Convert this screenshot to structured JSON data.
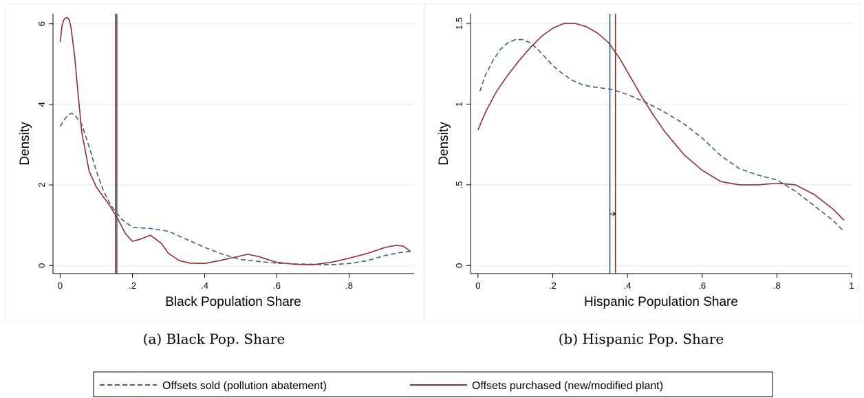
{
  "chart_data": [
    {
      "type": "line",
      "caption": "(a) Black Pop. Share",
      "xlabel": "Black Population Share",
      "ylabel": "Density",
      "xlim": [
        -0.02,
        0.98
      ],
      "ylim": [
        -0.2,
        6.25
      ],
      "xticks": [
        0,
        0.2,
        0.4,
        0.6,
        0.8
      ],
      "xtick_labels": [
        "0",
        ".2",
        ".4",
        ".6",
        ".8"
      ],
      "yticks": [
        0,
        2,
        4,
        6
      ],
      "ytick_labels": [
        "0",
        "2",
        "4",
        "6"
      ],
      "grid": true,
      "series": [
        {
          "name": "Offsets sold (pollution abatement)",
          "color": "#3a5f82",
          "dash": "dashed",
          "x": [
            0,
            0.01,
            0.02,
            0.03,
            0.04,
            0.06,
            0.08,
            0.1,
            0.12,
            0.14,
            0.155,
            0.17,
            0.2,
            0.25,
            0.3,
            0.35,
            0.4,
            0.45,
            0.5,
            0.55,
            0.6,
            0.65,
            0.7,
            0.75,
            0.8,
            0.85,
            0.9,
            0.94,
            0.97
          ],
          "y": [
            3.45,
            3.6,
            3.72,
            3.78,
            3.75,
            3.5,
            2.95,
            2.35,
            1.85,
            1.5,
            1.32,
            1.15,
            0.95,
            0.92,
            0.85,
            0.65,
            0.45,
            0.28,
            0.15,
            0.1,
            0.06,
            0.04,
            0.03,
            0.02,
            0.05,
            0.12,
            0.25,
            0.32,
            0.35
          ]
        },
        {
          "name": "Offsets purchased (new/modified plant)",
          "color": "#8c2d32",
          "dash": "solid",
          "x": [
            0,
            0.005,
            0.01,
            0.015,
            0.02,
            0.025,
            0.03,
            0.04,
            0.05,
            0.06,
            0.08,
            0.1,
            0.12,
            0.14,
            0.16,
            0.18,
            0.2,
            0.22,
            0.25,
            0.28,
            0.3,
            0.33,
            0.36,
            0.4,
            0.44,
            0.48,
            0.52,
            0.55,
            0.6,
            0.65,
            0.7,
            0.75,
            0.8,
            0.85,
            0.9,
            0.93,
            0.95,
            0.97
          ],
          "y": [
            5.55,
            5.95,
            6.1,
            6.15,
            6.15,
            6.1,
            5.9,
            5.2,
            4.2,
            3.3,
            2.35,
            1.95,
            1.7,
            1.45,
            1.15,
            0.8,
            0.6,
            0.65,
            0.75,
            0.55,
            0.3,
            0.12,
            0.06,
            0.05,
            0.12,
            0.2,
            0.28,
            0.22,
            0.08,
            0.03,
            0.02,
            0.08,
            0.18,
            0.3,
            0.45,
            0.5,
            0.48,
            0.35
          ]
        }
      ],
      "vlines": [
        {
          "series": "Offsets sold (pollution abatement)",
          "x": 0.157,
          "color": "#3a5f82"
        },
        {
          "series": "Offsets purchased (new/modified plant)",
          "x": 0.153,
          "color": "#8c2d32"
        }
      ]
    },
    {
      "type": "line",
      "caption": "(b) Hispanic Pop. Share",
      "xlabel": "Hispanic Population Share",
      "ylabel": "Density",
      "xlim": [
        -0.02,
        1.0
      ],
      "ylim": [
        -0.05,
        1.56
      ],
      "xticks": [
        0,
        0.2,
        0.4,
        0.6,
        0.8,
        1.0
      ],
      "xtick_labels": [
        "0",
        ".2",
        ".4",
        ".6",
        ".8",
        "1"
      ],
      "yticks": [
        0,
        0.5,
        1,
        1.5
      ],
      "ytick_labels": [
        "0",
        ".5",
        "1",
        "1.5"
      ],
      "grid": true,
      "series": [
        {
          "name": "Offsets sold (pollution abatement)",
          "color": "#3a5f82",
          "dash": "dashed",
          "x": [
            0.005,
            0.02,
            0.04,
            0.06,
            0.08,
            0.1,
            0.12,
            0.14,
            0.16,
            0.18,
            0.2,
            0.22,
            0.25,
            0.28,
            0.3,
            0.33,
            0.36,
            0.4,
            0.45,
            0.5,
            0.55,
            0.6,
            0.65,
            0.7,
            0.75,
            0.8,
            0.85,
            0.9,
            0.95,
            0.98
          ],
          "y": [
            1.08,
            1.18,
            1.27,
            1.34,
            1.38,
            1.4,
            1.4,
            1.38,
            1.34,
            1.29,
            1.24,
            1.2,
            1.15,
            1.12,
            1.11,
            1.1,
            1.09,
            1.06,
            1.01,
            0.95,
            0.88,
            0.79,
            0.68,
            0.6,
            0.56,
            0.53,
            0.46,
            0.37,
            0.28,
            0.21
          ]
        },
        {
          "name": "Offsets purchased (new/modified plant)",
          "color": "#8c2d32",
          "dash": "solid",
          "x": [
            0.0,
            0.02,
            0.05,
            0.08,
            0.11,
            0.14,
            0.17,
            0.2,
            0.23,
            0.26,
            0.29,
            0.32,
            0.35,
            0.38,
            0.41,
            0.44,
            0.47,
            0.5,
            0.55,
            0.6,
            0.65,
            0.7,
            0.75,
            0.8,
            0.85,
            0.9,
            0.95,
            0.98
          ],
          "y": [
            0.84,
            0.95,
            1.08,
            1.18,
            1.27,
            1.35,
            1.42,
            1.47,
            1.5,
            1.5,
            1.48,
            1.44,
            1.38,
            1.28,
            1.16,
            1.04,
            0.93,
            0.83,
            0.69,
            0.59,
            0.52,
            0.5,
            0.5,
            0.51,
            0.5,
            0.44,
            0.35,
            0.28
          ]
        }
      ],
      "vlines": [
        {
          "series": "Offsets sold (pollution abatement)",
          "x": 0.353,
          "color": "#3a5f82"
        },
        {
          "series": "Offsets purchased (new/modified plant)",
          "x": 0.368,
          "color": "#8c2d32"
        }
      ],
      "arrow": {
        "x_from": 0.353,
        "x_to": 0.368,
        "y": 0.32
      }
    }
  ],
  "legend": {
    "placement": "bottom",
    "items": [
      {
        "label": "Offsets sold (pollution abatement)",
        "color": "#3a5f82",
        "dash": "dashed"
      },
      {
        "label": "Offsets purchased (new/modified plant)",
        "color": "#8c2d32",
        "dash": "solid"
      }
    ]
  }
}
